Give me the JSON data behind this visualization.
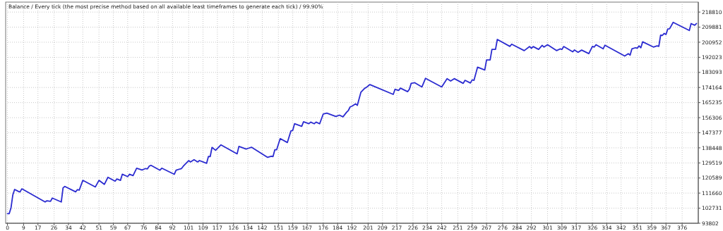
{
  "chart_data": {
    "type": "line",
    "title": "Balance / Every tick (the most precise method based on all available least timeframes to generate each tick) / 99.90%",
    "x": [
      0,
      1,
      2,
      3,
      4,
      6,
      7,
      8,
      21,
      22,
      24,
      25,
      30,
      31,
      32,
      38,
      39,
      40,
      42,
      49,
      51,
      54,
      56,
      60,
      61,
      63,
      64,
      67,
      68,
      70,
      72,
      75,
      77,
      78,
      79,
      80,
      85,
      86,
      93,
      94,
      97,
      98,
      101,
      102,
      104,
      106,
      107,
      111,
      112,
      113,
      114,
      116,
      119,
      128,
      129,
      133,
      134,
      136,
      145,
      147,
      148,
      149,
      150,
      152,
      156,
      158,
      159,
      160,
      164,
      165,
      168,
      169,
      171,
      172,
      174,
      176,
      178,
      183,
      185,
      187,
      189,
      190,
      191,
      192,
      194,
      195,
      197,
      199,
      200,
      202,
      215,
      216,
      218,
      219,
      223,
      224,
      225,
      227,
      231,
      233,
      242,
      245,
      247,
      249,
      254,
      255,
      258,
      259,
      260,
      262,
      266,
      267,
      269,
      270,
      272,
      273,
      280,
      281,
      288,
      291,
      292,
      293,
      296,
      298,
      299,
      301,
      306,
      308,
      309,
      310,
      315,
      316,
      318,
      320,
      324,
      326,
      327,
      328,
      332,
      333,
      344,
      346,
      347,
      348,
      350,
      351,
      352,
      353,
      354,
      360,
      362,
      363,
      364,
      365,
      366,
      367,
      368,
      369,
      371,
      380,
      381,
      383,
      384
    ],
    "values": [
      99500,
      99500,
      103000,
      110600,
      113800,
      112700,
      112300,
      114200,
      106400,
      107100,
      106800,
      108700,
      106400,
      114800,
      115600,
      112400,
      113700,
      113400,
      119200,
      115300,
      119200,
      116800,
      121000,
      118700,
      120000,
      119200,
      122800,
      121400,
      122800,
      122000,
      126400,
      125300,
      126200,
      126000,
      127600,
      128100,
      125200,
      126400,
      122800,
      125200,
      126200,
      127600,
      130900,
      130100,
      131400,
      130100,
      130900,
      129300,
      133300,
      133300,
      138700,
      137000,
      140200,
      134900,
      139300,
      137700,
      138100,
      138800,
      132800,
      133500,
      133300,
      137300,
      137300,
      143900,
      141600,
      148500,
      148800,
      152700,
      151200,
      153900,
      152700,
      153700,
      152700,
      153700,
      152700,
      158500,
      159000,
      157000,
      157800,
      156800,
      159500,
      160600,
      162700,
      163100,
      164500,
      163600,
      171400,
      173600,
      174200,
      175900,
      170100,
      173100,
      172400,
      173800,
      171700,
      173100,
      176600,
      177000,
      174500,
      179600,
      174500,
      179400,
      178000,
      179400,
      176600,
      178400,
      176800,
      178700,
      178400,
      186200,
      184500,
      190500,
      190500,
      196700,
      196700,
      202600,
      198500,
      199800,
      196000,
      198400,
      197400,
      198400,
      196700,
      199100,
      198100,
      199500,
      196000,
      197000,
      196700,
      198400,
      195300,
      196400,
      195000,
      196300,
      194200,
      198500,
      198100,
      199500,
      197100,
      199200,
      192800,
      194200,
      193300,
      197000,
      197700,
      197400,
      198800,
      197700,
      201200,
      198100,
      198800,
      198500,
      205100,
      205000,
      206200,
      205500,
      208800,
      208900,
      212700,
      207900,
      212000,
      211000,
      212000
    ],
    "color": "#2b2bd0",
    "marker": "none",
    "line_style": "solid",
    "grid": true,
    "xlim": [
      -1,
      385
    ],
    "xticks": [
      0,
      9,
      17,
      26,
      34,
      42,
      51,
      59,
      67,
      76,
      84,
      92,
      101,
      109,
      117,
      126,
      134,
      142,
      151,
      159,
      167,
      176,
      184,
      192,
      201,
      209,
      217,
      226,
      234,
      242,
      251,
      259,
      267,
      276,
      284,
      292,
      301,
      309,
      317,
      326,
      334,
      342,
      351,
      359,
      367,
      376
    ],
    "ylim": [
      93802,
      224700
    ],
    "yticks": [
      93802,
      102731,
      111660,
      120589,
      129519,
      138448,
      147377,
      156306,
      165235,
      174164,
      183093,
      192023,
      200952,
      209881,
      218810
    ]
  }
}
